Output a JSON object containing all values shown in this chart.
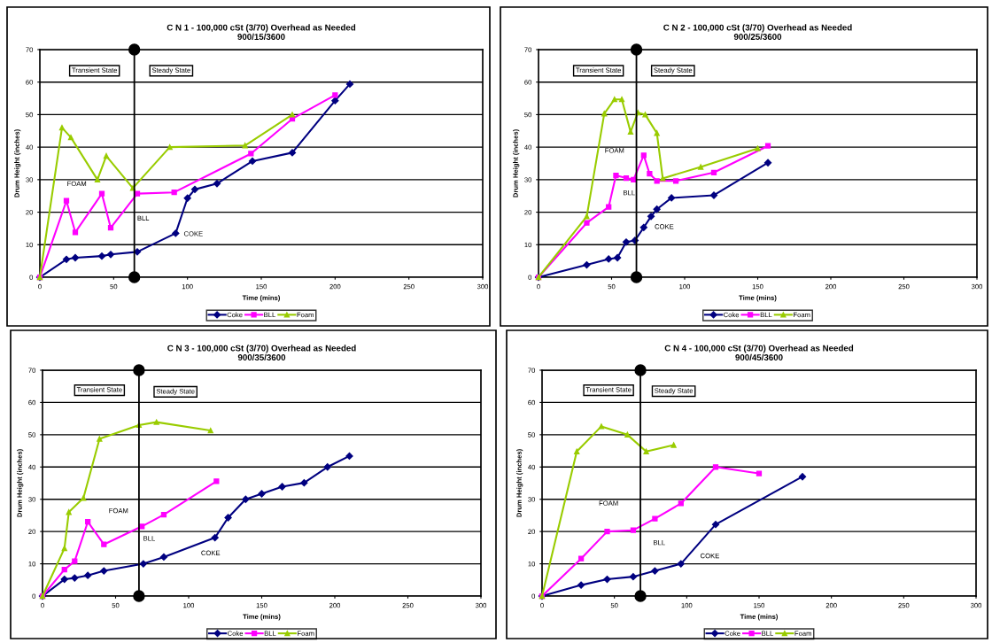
{
  "chart_data": [
    {
      "type": "line",
      "title": "C N 1 - 100,000 cSt (3/70) Overhead as Needed\n900/15/3600",
      "xlabel": "Time (mins)",
      "ylabel": "Drum Height (inches)",
      "xlim": [
        0,
        300
      ],
      "xticks": [
        0,
        50,
        100,
        150,
        200,
        250,
        300
      ],
      "ylim": [
        0,
        70
      ],
      "yticks": [
        0,
        10,
        20,
        30,
        40,
        50,
        60,
        70
      ],
      "grid": "y",
      "legend": "bottom",
      "series": [
        {
          "name": "Coke",
          "color": "#000080",
          "marker": "diamond",
          "x": [
            0,
            18,
            24,
            42,
            48,
            66,
            92,
            100,
            105,
            120,
            144,
            171,
            200,
            210
          ],
          "values": [
            0,
            5.5,
            6,
            6.5,
            7,
            7.8,
            13.5,
            24.3,
            27,
            28.8,
            35.7,
            38.3,
            54.3,
            59.4
          ]
        },
        {
          "name": "BLL",
          "color": "#ff00ff",
          "marker": "square",
          "x": [
            0,
            18,
            24,
            42,
            48,
            66,
            91,
            143,
            171,
            200
          ],
          "values": [
            0,
            23.5,
            13.8,
            25.7,
            15.2,
            25.7,
            26.1,
            38,
            48.7,
            56
          ]
        },
        {
          "name": "Foam",
          "color": "#99cc00",
          "marker": "triangle",
          "x": [
            0,
            15,
            21,
            39,
            45,
            63,
            88,
            139,
            171
          ],
          "values": [
            0,
            46,
            43,
            30,
            37.3,
            27.4,
            40,
            40.5,
            50
          ]
        }
      ],
      "ref_lines": [
        {
          "axis": "x",
          "value": 64,
          "color": "#000000"
        }
      ],
      "annotations": [
        "Transient State",
        "Steady State",
        "FOAM",
        "BLL",
        "COKE"
      ]
    },
    {
      "type": "line",
      "title": "C N 2 - 100,000 cSt (3/70) Overhead as Needed\n900/25/3600",
      "xlabel": "Time (mins)",
      "ylabel": "Drum Height (inches)",
      "xlim": [
        0,
        300
      ],
      "xticks": [
        0,
        50,
        100,
        150,
        200,
        250,
        300
      ],
      "ylim": [
        0,
        70
      ],
      "yticks": [
        0,
        10,
        20,
        30,
        40,
        50,
        60,
        70
      ],
      "grid": "y",
      "legend": "bottom",
      "series": [
        {
          "name": "Coke",
          "color": "#000080",
          "marker": "diamond",
          "x": [
            0,
            33,
            48,
            54,
            60,
            66,
            72,
            77,
            81,
            91,
            120,
            157
          ],
          "values": [
            0,
            3.8,
            5.6,
            6,
            10.8,
            11.3,
            15.3,
            18.7,
            20.9,
            24.4,
            25.2,
            35.2
          ]
        },
        {
          "name": "BLL",
          "color": "#ff00ff",
          "marker": "square",
          "x": [
            0,
            33,
            48,
            53,
            60,
            65,
            72,
            76,
            81,
            94,
            120,
            157
          ],
          "values": [
            0,
            16.7,
            21.6,
            31.3,
            30.5,
            30,
            37.5,
            31.8,
            29.6,
            29.6,
            32.2,
            40.4
          ]
        },
        {
          "name": "Foam",
          "color": "#99cc00",
          "marker": "triangle",
          "x": [
            0,
            33,
            45,
            52,
            57,
            63,
            68,
            73,
            81,
            85,
            111,
            150
          ],
          "values": [
            0,
            18.7,
            50.3,
            54.7,
            54.7,
            44.7,
            50.6,
            50,
            44.3,
            30.4,
            33.9,
            39.6
          ]
        }
      ],
      "ref_lines": [
        {
          "axis": "x",
          "value": 67,
          "color": "#000000"
        }
      ],
      "annotations": [
        "Transient State",
        "Steady State",
        "FOAM",
        "BLL",
        "COKE"
      ]
    },
    {
      "type": "line",
      "title": "C N 3 - 100,000 cSt (3/70) Overhead as Needed\n900/35/3600",
      "xlabel": "Time (mins)",
      "ylabel": "Drum Height (inches)",
      "xlim": [
        0,
        300
      ],
      "xticks": [
        0,
        50,
        100,
        150,
        200,
        250,
        300
      ],
      "ylim": [
        0,
        70
      ],
      "yticks": [
        0,
        10,
        20,
        30,
        40,
        50,
        60,
        70
      ],
      "grid": "y",
      "legend": "bottom",
      "series": [
        {
          "name": "Coke",
          "color": "#000080",
          "marker": "diamond",
          "x": [
            0,
            15,
            22,
            31,
            42,
            69,
            83,
            118,
            127,
            139,
            150,
            164,
            179,
            195,
            210
          ],
          "values": [
            0,
            5.2,
            5.6,
            6.4,
            7.8,
            10,
            12.1,
            18.1,
            24.3,
            30,
            31.7,
            33.9,
            35.1,
            40,
            43.4
          ]
        },
        {
          "name": "BLL",
          "color": "#ff00ff",
          "marker": "square",
          "x": [
            0,
            15,
            22,
            31,
            42,
            68,
            83,
            119
          ],
          "values": [
            0,
            8.2,
            10.8,
            23,
            16,
            21.6,
            25.2,
            35.6
          ]
        },
        {
          "name": "Foam",
          "color": "#99cc00",
          "marker": "triangle",
          "x": [
            0,
            15,
            18,
            28,
            39,
            66,
            78,
            115
          ],
          "values": [
            0,
            14.8,
            26,
            30.4,
            48.7,
            53,
            53.9,
            51.3
          ]
        }
      ],
      "ref_lines": [
        {
          "axis": "x",
          "value": 66,
          "color": "#000000"
        }
      ],
      "annotations": [
        "Transient State",
        "Steady State",
        "FOAM",
        "BLL",
        "COKE"
      ]
    },
    {
      "type": "line",
      "title": "C N 4 - 100,000 cSt (3/70) Overhead as Needed\n900/45/3600",
      "xlabel": "Time (mins)",
      "ylabel": "Drum Height (inches)",
      "xlim": [
        0,
        300
      ],
      "xticks": [
        0,
        50,
        100,
        150,
        200,
        250,
        300
      ],
      "ylim": [
        0,
        70
      ],
      "yticks": [
        0,
        10,
        20,
        30,
        40,
        50,
        60,
        70
      ],
      "grid": "y",
      "legend": "bottom",
      "series": [
        {
          "name": "Coke",
          "color": "#000080",
          "marker": "diamond",
          "x": [
            0,
            27,
            45,
            63,
            78,
            96,
            120,
            180
          ],
          "values": [
            0,
            3.4,
            5.2,
            6,
            7.8,
            10,
            22.2,
            37
          ]
        },
        {
          "name": "BLL",
          "color": "#ff00ff",
          "marker": "square",
          "x": [
            0,
            27,
            45,
            63,
            78,
            96,
            120,
            150
          ],
          "values": [
            0,
            11.6,
            20,
            20.4,
            24,
            28.7,
            40,
            38
          ]
        },
        {
          "name": "Foam",
          "color": "#99cc00",
          "marker": "triangle",
          "x": [
            0,
            24,
            41,
            59,
            72,
            91
          ],
          "values": [
            0,
            44.8,
            52.6,
            50,
            44.8,
            46.8
          ]
        }
      ],
      "ref_lines": [
        {
          "axis": "x",
          "value": 68,
          "color": "#000000"
        }
      ],
      "annotations": [
        "Transient State",
        "Steady State",
        "FOAM",
        "BLL",
        "COKE"
      ]
    }
  ]
}
